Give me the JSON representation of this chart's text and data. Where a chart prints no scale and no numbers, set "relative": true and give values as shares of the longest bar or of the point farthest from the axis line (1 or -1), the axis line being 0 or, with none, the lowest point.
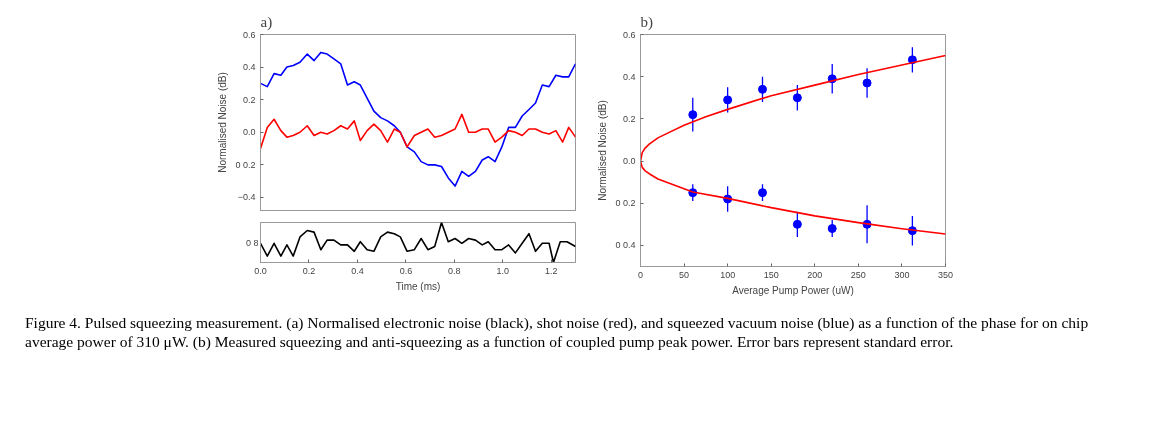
{
  "chart_data": [
    {
      "type": "line",
      "title": "a)",
      "ylabel": "Normalised Noise (dB)",
      "xlim": [
        0,
        1.3
      ],
      "ylim": [
        -0.48,
        0.6
      ],
      "yticks": [
        0.6,
        0.4,
        0.2,
        {
          "value": 0,
          "label": "0.0"
        },
        {
          "value": -0.2,
          "label": "0 0.2"
        },
        {
          "value": -0.4,
          "label": "−0.4"
        }
      ],
      "tick_labels": "y",
      "grid": false,
      "line_style": "solid",
      "marker": "none",
      "x": [
        0.0,
        0.028,
        0.056,
        0.084,
        0.109,
        0.135,
        0.163,
        0.193,
        0.221,
        0.249,
        0.275,
        0.303,
        0.331,
        0.359,
        0.387,
        0.412,
        0.44,
        0.468,
        0.496,
        0.524,
        0.552,
        0.577,
        0.605,
        0.635,
        0.663,
        0.691,
        0.719,
        0.747,
        0.775,
        0.803,
        0.831,
        0.859,
        0.887,
        0.915,
        0.94,
        0.968,
        0.996,
        1.024,
        1.052,
        1.08,
        1.108,
        1.135,
        1.163,
        1.191,
        1.219,
        1.247,
        1.272,
        1.3
      ],
      "series": [
        {
          "color": "#0000ff",
          "values": [
            0.3,
            0.28,
            0.36,
            0.35,
            0.4,
            0.41,
            0.43,
            0.48,
            0.44,
            0.49,
            0.48,
            0.45,
            0.42,
            0.29,
            0.31,
            0.29,
            0.21,
            0.13,
            0.09,
            0.07,
            0.04,
            0.0,
            -0.09,
            -0.12,
            -0.18,
            -0.2,
            -0.2,
            -0.21,
            -0.28,
            -0.33,
            -0.24,
            -0.27,
            -0.24,
            -0.17,
            -0.15,
            -0.18,
            -0.09,
            0.03,
            0.03,
            0.1,
            0.14,
            0.18,
            0.29,
            0.28,
            0.35,
            0.34,
            0.34,
            0.42
          ]
        },
        {
          "color": "#ff0000",
          "values": [
            -0.1,
            0.03,
            0.08,
            0.01,
            -0.03,
            -0.02,
            0.0,
            0.04,
            -0.02,
            0.0,
            -0.01,
            0.01,
            0.04,
            0.02,
            0.07,
            -0.05,
            0.01,
            0.05,
            0.01,
            -0.06,
            0.02,
            0.0,
            -0.09,
            -0.02,
            0.0,
            0.02,
            -0.03,
            -0.02,
            0.0,
            0.02,
            0.11,
            0.0,
            0.0,
            0.02,
            0.02,
            -0.06,
            -0.03,
            0.01,
            0.0,
            -0.02,
            0.02,
            0.02,
            0.0,
            -0.01,
            0.01,
            -0.06,
            0.03,
            -0.03
          ]
        }
      ]
    },
    {
      "type": "line",
      "xlabel": "Time (ms)",
      "xlim": [
        0,
        1.3
      ],
      "relative": true,
      "annotations": [
        "0 8"
      ],
      "xticks": [
        {
          "value": 0,
          "label": "0.0"
        },
        0.2,
        0.4,
        0.6,
        0.8,
        {
          "value": 1,
          "label": "1.0"
        },
        1.2
      ],
      "grid": false,
      "line_style": "solid",
      "marker": "none",
      "x": [
        0.0,
        0.028,
        0.056,
        0.084,
        0.109,
        0.135,
        0.163,
        0.193,
        0.221,
        0.249,
        0.275,
        0.303,
        0.331,
        0.359,
        0.387,
        0.412,
        0.44,
        0.468,
        0.496,
        0.524,
        0.552,
        0.577,
        0.605,
        0.635,
        0.663,
        0.691,
        0.719,
        0.747,
        0.775,
        0.803,
        0.831,
        0.859,
        0.887,
        0.915,
        0.94,
        0.968,
        0.996,
        1.024,
        1.052,
        1.08,
        1.108,
        1.135,
        1.163,
        1.191,
        1.209,
        1.237,
        1.265,
        1.3
      ],
      "series": [
        {
          "color": "#000000",
          "values": [
            0.48,
            0.16,
            0.48,
            0.16,
            0.44,
            0.16,
            0.64,
            0.8,
            0.76,
            0.32,
            0.56,
            0.56,
            0.44,
            0.44,
            0.28,
            0.52,
            0.32,
            0.28,
            0.64,
            0.76,
            0.72,
            0.64,
            0.28,
            0.32,
            0.6,
            0.32,
            0.4,
            1.0,
            0.52,
            0.6,
            0.48,
            0.6,
            0.56,
            0.44,
            0.52,
            0.32,
            0.32,
            0.44,
            0.24,
            0.48,
            0.72,
            0.28,
            0.48,
            0.48,
            0.0,
            0.52,
            0.52,
            0.4
          ]
        }
      ]
    },
    {
      "type": "scatter",
      "title": "b)",
      "xlabel": "Average Pump Power (uW)",
      "ylabel": "Normalised Noise (dB)",
      "xlim": [
        0,
        350
      ],
      "ylim": [
        -0.5,
        0.6
      ],
      "xticks": [
        0,
        50,
        100,
        150,
        200,
        250,
        300,
        350
      ],
      "yticks": [
        0.6,
        0.4,
        0.2,
        {
          "value": 0,
          "label": "0.0"
        },
        {
          "value": -0.2,
          "label": "0 0.2"
        },
        {
          "value": -0.4,
          "label": "0 0.4"
        }
      ],
      "grid": false,
      "marker": "circle",
      "series": [
        {
          "color": "#0000ff",
          "x": [
            60,
            100,
            140,
            180,
            220,
            260,
            312
          ],
          "values": [
            0.22,
            0.29,
            0.34,
            0.3,
            0.39,
            0.37,
            0.48
          ],
          "errors": [
            0.08,
            0.06,
            0.06,
            0.06,
            0.07,
            0.07,
            0.06
          ]
        },
        {
          "color": "#0000ff",
          "x": [
            60,
            100,
            140,
            180,
            220,
            260,
            312
          ],
          "values": [
            -0.15,
            -0.18,
            -0.15,
            -0.3,
            -0.32,
            -0.3,
            -0.33
          ],
          "errors": [
            0.04,
            0.06,
            0.04,
            0.06,
            0.04,
            0.09,
            0.07
          ]
        },
        {
          "type": "line",
          "marker": "none",
          "color": "#ff0000",
          "x": [
            350,
            300,
            250,
            200,
            150,
            100,
            75,
            50,
            30,
            20,
            10,
            5,
            2,
            0,
            2,
            5,
            10,
            20,
            30,
            60,
            100,
            150,
            200,
            250,
            300,
            350
          ],
          "values": [
            0.5,
            0.455,
            0.41,
            0.36,
            0.31,
            0.245,
            0.21,
            0.17,
            0.13,
            0.11,
            0.08,
            0.06,
            0.04,
            0.0,
            -0.03,
            -0.045,
            -0.06,
            -0.085,
            -0.1,
            -0.147,
            -0.177,
            -0.221,
            -0.26,
            -0.292,
            -0.321,
            -0.346
          ]
        }
      ],
      "annotations": [
        "Figure 4. Pulsed squeezing measurement. (a) Normalised electronic noise (black), shot noise (red), and squeezed vacuum noise (blue) as a function of the phase for on chip average power of 310 μW. (b) Measured squeezing and anti-squeezing as a function of coupled pump peak power. Error bars represent standard error."
      ]
    }
  ]
}
